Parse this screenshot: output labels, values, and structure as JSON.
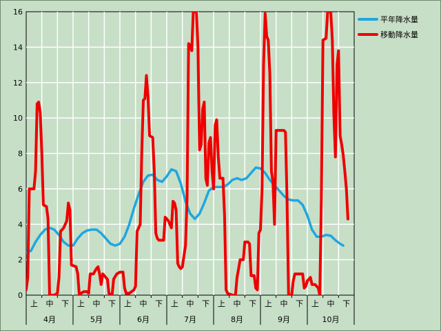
{
  "chart_data": {
    "type": "line",
    "ylim": [
      0,
      16
    ],
    "yticks": [
      "0",
      "2",
      "4",
      "6",
      "8",
      "10",
      "12",
      "14",
      "16"
    ],
    "xlim": [
      0,
      21
    ],
    "subticks": [
      "上",
      "中",
      "下"
    ],
    "months": [
      "4月",
      "5月",
      "6月",
      "7月",
      "8月",
      "9月",
      "10月"
    ],
    "grid": true,
    "legend_position": "top-right",
    "series": [
      {
        "name": "平年降水量",
        "color": "#1fa6e0",
        "points": [
          [
            0.0,
            2.4
          ],
          [
            0.3,
            2.5
          ],
          [
            0.6,
            3.0
          ],
          [
            0.9,
            3.4
          ],
          [
            1.2,
            3.7
          ],
          [
            1.5,
            3.8
          ],
          [
            1.8,
            3.7
          ],
          [
            2.1,
            3.4
          ],
          [
            2.4,
            3.0
          ],
          [
            2.7,
            2.8
          ],
          [
            3.0,
            2.8
          ],
          [
            3.3,
            3.2
          ],
          [
            3.6,
            3.5
          ],
          [
            3.9,
            3.65
          ],
          [
            4.2,
            3.7
          ],
          [
            4.5,
            3.7
          ],
          [
            4.8,
            3.5
          ],
          [
            5.1,
            3.2
          ],
          [
            5.4,
            2.9
          ],
          [
            5.7,
            2.8
          ],
          [
            6.0,
            2.9
          ],
          [
            6.3,
            3.3
          ],
          [
            6.6,
            4.0
          ],
          [
            6.9,
            4.9
          ],
          [
            7.2,
            5.7
          ],
          [
            7.5,
            6.4
          ],
          [
            7.8,
            6.75
          ],
          [
            8.1,
            6.8
          ],
          [
            8.4,
            6.5
          ],
          [
            8.7,
            6.4
          ],
          [
            9.0,
            6.7
          ],
          [
            9.3,
            7.1
          ],
          [
            9.6,
            7.0
          ],
          [
            9.9,
            6.3
          ],
          [
            10.2,
            5.3
          ],
          [
            10.5,
            4.6
          ],
          [
            10.8,
            4.3
          ],
          [
            11.1,
            4.6
          ],
          [
            11.4,
            5.2
          ],
          [
            11.7,
            5.9
          ],
          [
            12.0,
            6.1
          ],
          [
            12.3,
            6.1
          ],
          [
            12.6,
            6.1
          ],
          [
            12.9,
            6.25
          ],
          [
            13.2,
            6.5
          ],
          [
            13.5,
            6.6
          ],
          [
            13.8,
            6.5
          ],
          [
            14.1,
            6.6
          ],
          [
            14.4,
            6.9
          ],
          [
            14.7,
            7.2
          ],
          [
            15.0,
            7.15
          ],
          [
            15.3,
            6.9
          ],
          [
            15.6,
            6.5
          ],
          [
            15.9,
            6.2
          ],
          [
            16.2,
            5.9
          ],
          [
            16.5,
            5.6
          ],
          [
            16.8,
            5.4
          ],
          [
            17.1,
            5.35
          ],
          [
            17.4,
            5.35
          ],
          [
            17.7,
            5.1
          ],
          [
            18.0,
            4.5
          ],
          [
            18.3,
            3.7
          ],
          [
            18.6,
            3.3
          ],
          [
            18.9,
            3.3
          ],
          [
            19.2,
            3.4
          ],
          [
            19.5,
            3.35
          ],
          [
            19.8,
            3.1
          ],
          [
            20.1,
            2.9
          ],
          [
            20.3,
            2.8
          ]
        ]
      },
      {
        "name": "移動降水量",
        "color": "#ee0000",
        "points": [
          [
            0.0,
            0.3
          ],
          [
            0.1,
            1.0
          ],
          [
            0.2,
            6.0
          ],
          [
            0.5,
            6.0
          ],
          [
            0.6,
            7.0
          ],
          [
            0.7,
            10.8
          ],
          [
            0.8,
            10.9
          ],
          [
            0.9,
            10.3
          ],
          [
            1.0,
            8.0
          ],
          [
            1.1,
            5.1
          ],
          [
            1.3,
            5.0
          ],
          [
            1.4,
            4.3
          ],
          [
            1.5,
            0.0
          ],
          [
            1.8,
            0.0
          ],
          [
            2.0,
            0.1
          ],
          [
            2.1,
            1.0
          ],
          [
            2.2,
            3.6
          ],
          [
            2.4,
            3.8
          ],
          [
            2.5,
            4.0
          ],
          [
            2.6,
            4.2
          ],
          [
            2.7,
            5.2
          ],
          [
            2.8,
            4.8
          ],
          [
            2.9,
            1.7
          ],
          [
            3.2,
            1.6
          ],
          [
            3.3,
            1.2
          ],
          [
            3.4,
            0.0
          ],
          [
            3.5,
            0.1
          ],
          [
            3.7,
            0.2
          ],
          [
            3.9,
            0.2
          ],
          [
            4.0,
            0.1
          ],
          [
            4.1,
            1.2
          ],
          [
            4.3,
            1.2
          ],
          [
            4.5,
            1.5
          ],
          [
            4.6,
            1.6
          ],
          [
            4.7,
            1.2
          ],
          [
            4.8,
            0.6
          ],
          [
            4.9,
            1.2
          ],
          [
            5.0,
            1.1
          ],
          [
            5.2,
            0.9
          ],
          [
            5.3,
            0.1
          ],
          [
            5.5,
            0.0
          ],
          [
            5.6,
            0.9
          ],
          [
            5.8,
            1.2
          ],
          [
            6.0,
            1.3
          ],
          [
            6.2,
            1.3
          ],
          [
            6.3,
            0.4
          ],
          [
            6.4,
            0.1
          ],
          [
            6.6,
            0.1
          ],
          [
            6.9,
            0.3
          ],
          [
            7.0,
            0.5
          ],
          [
            7.1,
            3.6
          ],
          [
            7.3,
            4.0
          ],
          [
            7.4,
            8.0
          ],
          [
            7.5,
            11.0
          ],
          [
            7.6,
            11.1
          ],
          [
            7.7,
            12.4
          ],
          [
            7.8,
            11.2
          ],
          [
            7.9,
            9.0
          ],
          [
            8.1,
            8.9
          ],
          [
            8.2,
            7.0
          ],
          [
            8.3,
            3.5
          ],
          [
            8.4,
            3.2
          ],
          [
            8.5,
            3.1
          ],
          [
            8.8,
            3.1
          ],
          [
            8.9,
            4.4
          ],
          [
            9.1,
            4.2
          ],
          [
            9.2,
            4.0
          ],
          [
            9.3,
            3.8
          ],
          [
            9.4,
            5.3
          ],
          [
            9.5,
            5.2
          ],
          [
            9.6,
            4.8
          ],
          [
            9.7,
            1.8
          ],
          [
            9.8,
            1.6
          ],
          [
            9.9,
            1.5
          ],
          [
            10.0,
            1.6
          ],
          [
            10.1,
            2.2
          ],
          [
            10.2,
            2.8
          ],
          [
            10.3,
            5.5
          ],
          [
            10.4,
            14.2
          ],
          [
            10.5,
            14.1
          ],
          [
            10.6,
            13.8
          ],
          [
            10.7,
            16.0
          ],
          [
            10.8,
            16.0
          ],
          [
            10.9,
            16.0
          ],
          [
            11.0,
            14.0
          ],
          [
            11.1,
            8.2
          ],
          [
            11.2,
            8.5
          ],
          [
            11.3,
            10.5
          ],
          [
            11.4,
            10.9
          ],
          [
            11.5,
            6.6
          ],
          [
            11.6,
            6.2
          ],
          [
            11.7,
            8.6
          ],
          [
            11.8,
            8.9
          ],
          [
            11.9,
            7.0
          ],
          [
            12.0,
            6.0
          ],
          [
            12.1,
            9.6
          ],
          [
            12.2,
            9.9
          ],
          [
            12.3,
            7.8
          ],
          [
            12.4,
            6.6
          ],
          [
            12.6,
            6.6
          ],
          [
            12.7,
            4.5
          ],
          [
            12.8,
            0.3
          ],
          [
            12.9,
            0.1
          ],
          [
            13.2,
            0.0
          ],
          [
            13.4,
            0.0
          ],
          [
            13.5,
            1.0
          ],
          [
            13.6,
            1.5
          ],
          [
            13.7,
            2.0
          ],
          [
            13.9,
            2.0
          ],
          [
            14.0,
            3.0
          ],
          [
            14.2,
            3.0
          ],
          [
            14.3,
            2.9
          ],
          [
            14.4,
            1.1
          ],
          [
            14.6,
            1.1
          ],
          [
            14.7,
            0.4
          ],
          [
            14.8,
            0.3
          ],
          [
            14.9,
            3.5
          ],
          [
            15.0,
            3.7
          ],
          [
            15.1,
            6.0
          ],
          [
            15.2,
            13.0
          ],
          [
            15.3,
            15.9
          ],
          [
            15.4,
            14.6
          ],
          [
            15.5,
            14.4
          ],
          [
            15.6,
            12.5
          ],
          [
            15.7,
            7.0
          ],
          [
            15.8,
            6.4
          ],
          [
            15.9,
            4.0
          ],
          [
            16.0,
            9.3
          ],
          [
            16.2,
            9.3
          ],
          [
            16.5,
            9.3
          ],
          [
            16.6,
            9.2
          ],
          [
            16.7,
            5.5
          ],
          [
            16.8,
            0.0
          ],
          [
            17.0,
            0.0
          ],
          [
            17.1,
            0.8
          ],
          [
            17.2,
            1.2
          ],
          [
            17.5,
            1.2
          ],
          [
            17.7,
            1.2
          ],
          [
            17.8,
            0.4
          ],
          [
            17.9,
            0.5
          ],
          [
            18.0,
            0.8
          ],
          [
            18.2,
            1.0
          ],
          [
            18.3,
            0.6
          ],
          [
            18.5,
            0.6
          ],
          [
            18.7,
            0.4
          ],
          [
            18.8,
            0.0
          ],
          [
            18.9,
            5.5
          ],
          [
            19.0,
            14.4
          ],
          [
            19.2,
            14.5
          ],
          [
            19.3,
            16.0
          ],
          [
            19.5,
            16.0
          ],
          [
            19.6,
            14.4
          ],
          [
            19.7,
            10.2
          ],
          [
            19.8,
            7.8
          ],
          [
            19.9,
            13.0
          ],
          [
            20.0,
            13.8
          ],
          [
            20.1,
            9.0
          ],
          [
            20.2,
            8.5
          ],
          [
            20.3,
            7.9
          ],
          [
            20.4,
            7.0
          ],
          [
            20.5,
            6.0
          ],
          [
            20.6,
            4.3
          ]
        ]
      }
    ]
  }
}
